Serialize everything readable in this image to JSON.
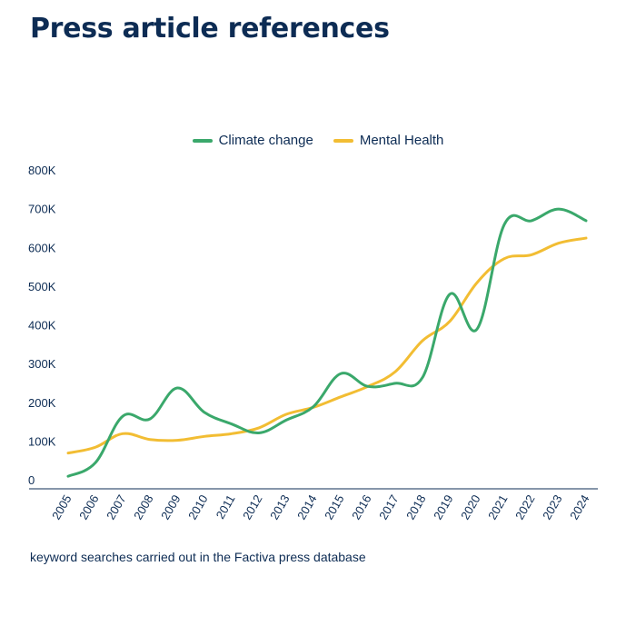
{
  "title": "Press article references",
  "footnote": "keyword searches carried out in the Factiva press database",
  "colors": {
    "climate": "#3aa86b",
    "mental": "#f2bd33",
    "text": "#0d2c54",
    "axis": "#0d2c54"
  },
  "chart_data": {
    "type": "line",
    "title": "Press article references",
    "xlabel": "",
    "ylabel": "",
    "x": [
      "2005",
      "2006",
      "2007",
      "2008",
      "2009",
      "2010",
      "2011",
      "2012",
      "2013",
      "2014",
      "2015",
      "2016",
      "2017",
      "2018",
      "2019",
      "2020",
      "2021",
      "2022",
      "2023",
      "2024"
    ],
    "ylim": [
      0,
      800000
    ],
    "y_ticks": [
      {
        "value": 0,
        "label": "0"
      },
      {
        "value": 100000,
        "label": "100K"
      },
      {
        "value": 200000,
        "label": "200K"
      },
      {
        "value": 300000,
        "label": "300K"
      },
      {
        "value": 400000,
        "label": "400K"
      },
      {
        "value": 500000,
        "label": "500K"
      },
      {
        "value": 600000,
        "label": "600K"
      },
      {
        "value": 700000,
        "label": "700K"
      },
      {
        "value": 800000,
        "label": "800K"
      }
    ],
    "grid": false,
    "legend": "top-center",
    "series": [
      {
        "name": "Climate change",
        "color": "#3aa86b",
        "values": [
          30000,
          65000,
          185000,
          178000,
          258000,
          195000,
          165000,
          142000,
          175000,
          210000,
          295000,
          262000,
          270000,
          285000,
          500000,
          410000,
          680000,
          690000,
          720000,
          690000
        ]
      },
      {
        "name": "Mental Health",
        "color": "#f2bd33",
        "values": [
          90000,
          105000,
          140000,
          125000,
          123000,
          133000,
          140000,
          155000,
          190000,
          208000,
          235000,
          262000,
          300000,
          380000,
          430000,
          530000,
          592000,
          602000,
          632000,
          645000
        ]
      }
    ]
  }
}
